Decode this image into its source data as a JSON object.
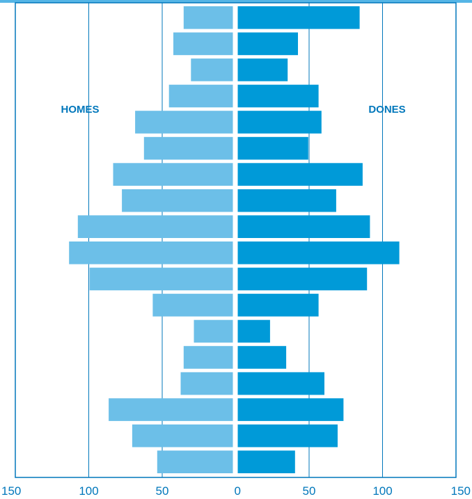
{
  "chart_data": {
    "type": "bar",
    "orientation": "horizontal-butterfly",
    "title": "",
    "xlim": [
      -150,
      150
    ],
    "xtick_labels": [
      "150",
      "100",
      "50",
      "0",
      "50",
      "100",
      "150"
    ],
    "grid": "vertical gridlines at 50-unit intervals",
    "series": [
      {
        "name": "HOMES",
        "side": "left",
        "color": "#6cbfe8",
        "values": [
          34,
          41,
          29,
          44,
          67,
          61,
          82,
          76,
          106,
          112,
          98,
          55,
          27,
          34,
          36,
          85,
          69,
          52
        ]
      },
      {
        "name": "DONES",
        "side": "right",
        "color": "#009ad8",
        "values": [
          83,
          41,
          34,
          55,
          57,
          48,
          85,
          67,
          90,
          110,
          88,
          55,
          22,
          33,
          59,
          72,
          68,
          39
        ]
      }
    ]
  },
  "colors": {
    "accent": "#0077bb",
    "frame": "#0077bb",
    "top_bar": "#55b5e6"
  }
}
